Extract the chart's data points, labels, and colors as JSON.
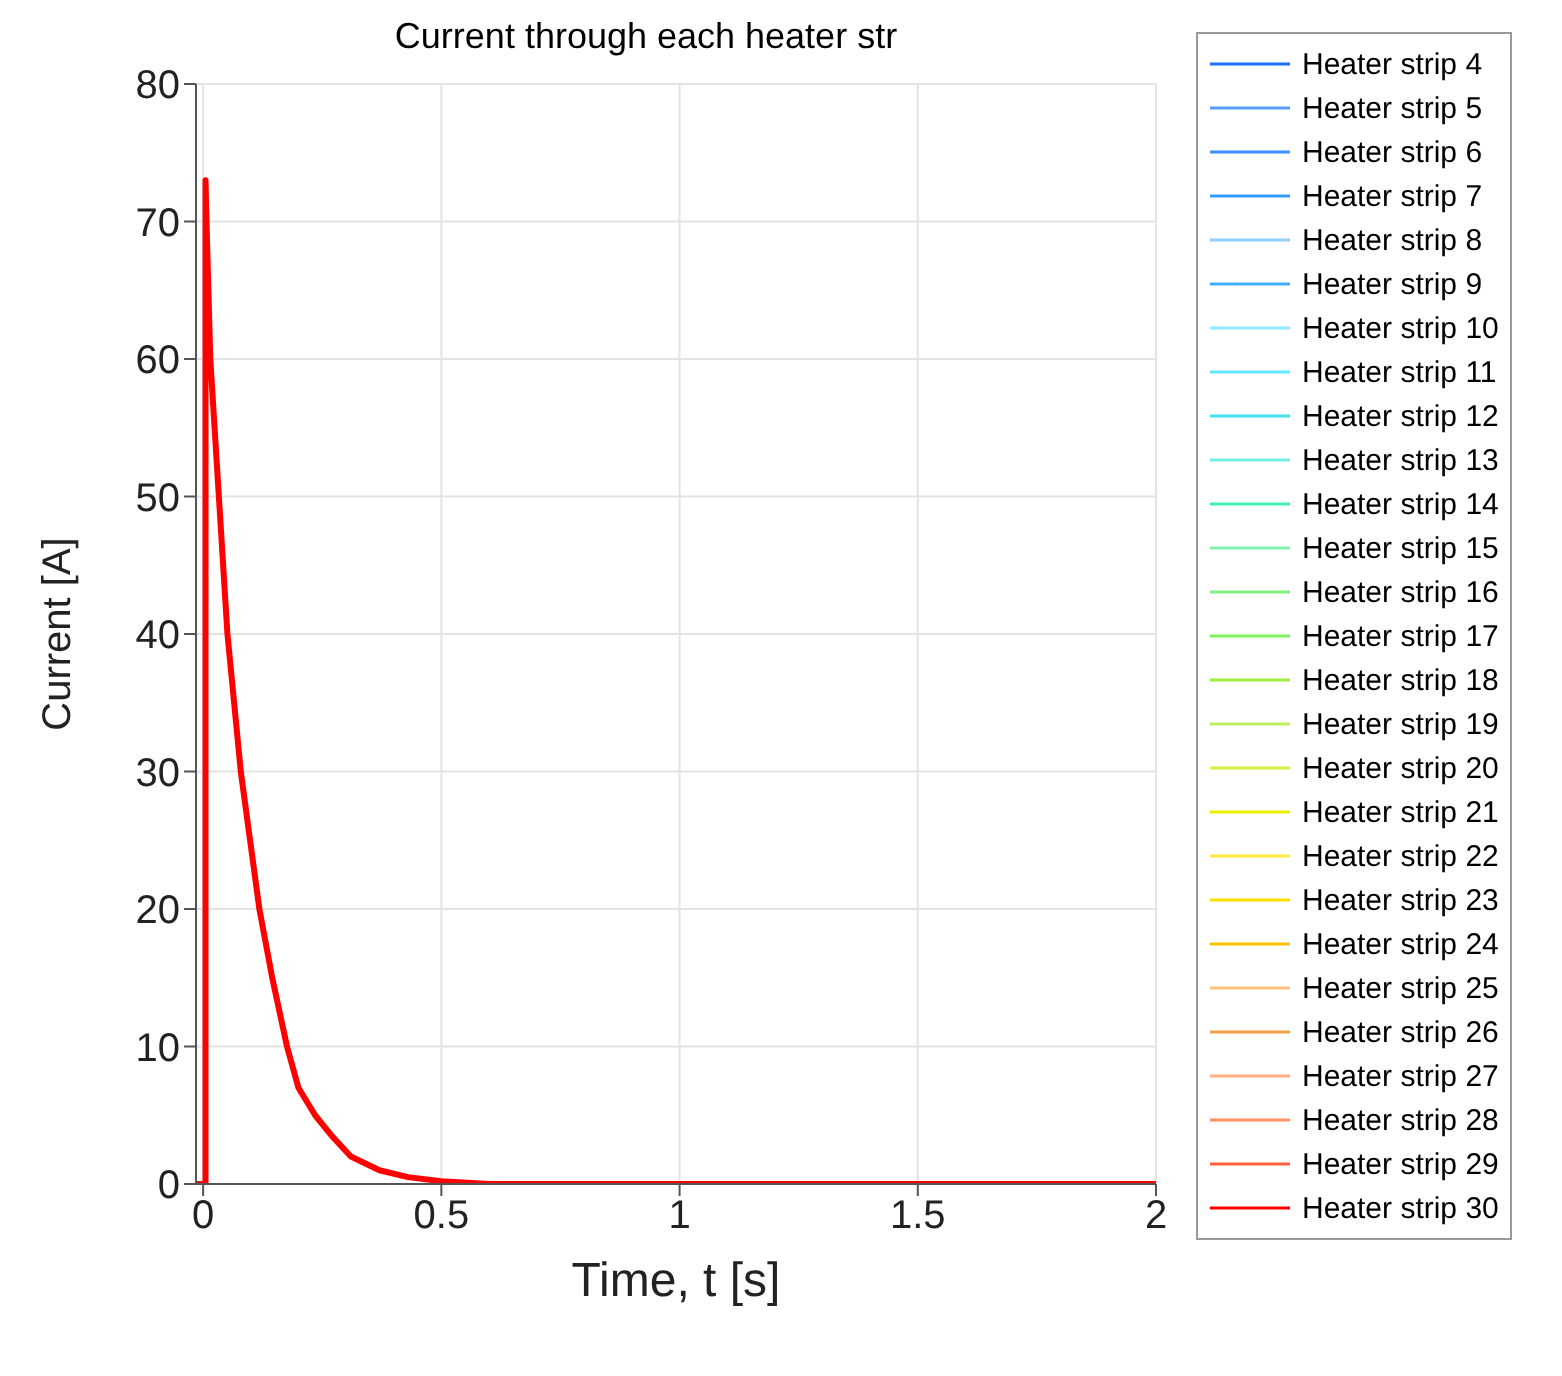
{
  "chart_data": {
    "type": "line",
    "title": "Current through each heater str",
    "xlabel": "Time, t [s]",
    "ylabel": "Current [A]",
    "x": [
      -0.015,
      0.005,
      0.005,
      0.007,
      0.015,
      0.033,
      0.051,
      0.079,
      0.118,
      0.145,
      0.176,
      0.2,
      0.235,
      0.27,
      0.31,
      0.37,
      0.43,
      0.5,
      0.6,
      1,
      2
    ],
    "xlim": [
      -0.015,
      2
    ],
    "xticks": [
      0,
      0.5,
      1,
      1.5,
      2
    ],
    "ylim": [
      0,
      80
    ],
    "yticks": [
      0,
      10,
      20,
      30,
      40,
      50,
      60,
      70,
      80
    ],
    "grid": true,
    "legend": "right",
    "line_style": "solid",
    "series": [
      {
        "name": "Heater strip 4",
        "color": "#1f6fff",
        "values": [
          null,
          null,
          null,
          null,
          null,
          null,
          null,
          null,
          null,
          null,
          null,
          null,
          null,
          null,
          null,
          null,
          null,
          null,
          null,
          null,
          null
        ]
      },
      {
        "name": "Heater strip 5",
        "color": "#5a9cff",
        "values": [
          null,
          null,
          null,
          null,
          null,
          null,
          null,
          null,
          null,
          null,
          null,
          null,
          null,
          null,
          null,
          null,
          null,
          null,
          null,
          null,
          null
        ]
      },
      {
        "name": "Heater strip 6",
        "color": "#3f8fff",
        "values": [
          null,
          null,
          null,
          null,
          null,
          null,
          null,
          null,
          null,
          null,
          null,
          null,
          null,
          null,
          null,
          null,
          null,
          null,
          null,
          null,
          null
        ]
      },
      {
        "name": "Heater strip 7",
        "color": "#2f9fff",
        "values": [
          null,
          null,
          null,
          null,
          null,
          null,
          null,
          null,
          null,
          null,
          null,
          null,
          null,
          null,
          null,
          null,
          null,
          null,
          null,
          null,
          null
        ]
      },
      {
        "name": "Heater strip 8",
        "color": "#8fd0ff",
        "values": [
          null,
          null,
          null,
          null,
          null,
          null,
          null,
          null,
          null,
          null,
          null,
          null,
          null,
          null,
          null,
          null,
          null,
          null,
          null,
          null,
          null
        ]
      },
      {
        "name": "Heater strip 9",
        "color": "#3fb0ff",
        "values": [
          null,
          null,
          null,
          null,
          null,
          null,
          null,
          null,
          null,
          null,
          null,
          null,
          null,
          null,
          null,
          null,
          null,
          null,
          null,
          null,
          null
        ]
      },
      {
        "name": "Heater strip 10",
        "color": "#8fe8ff",
        "values": [
          null,
          null,
          null,
          null,
          null,
          null,
          null,
          null,
          null,
          null,
          null,
          null,
          null,
          null,
          null,
          null,
          null,
          null,
          null,
          null,
          null
        ]
      },
      {
        "name": "Heater strip 11",
        "color": "#60e8ff",
        "values": [
          null,
          null,
          null,
          null,
          null,
          null,
          null,
          null,
          null,
          null,
          null,
          null,
          null,
          null,
          null,
          null,
          null,
          null,
          null,
          null,
          null
        ]
      },
      {
        "name": "Heater strip 12",
        "color": "#40e0f0",
        "values": [
          null,
          null,
          null,
          null,
          null,
          null,
          null,
          null,
          null,
          null,
          null,
          null,
          null,
          null,
          null,
          null,
          null,
          null,
          null,
          null,
          null
        ]
      },
      {
        "name": "Heater strip 13",
        "color": "#70f0e0",
        "values": [
          null,
          null,
          null,
          null,
          null,
          null,
          null,
          null,
          null,
          null,
          null,
          null,
          null,
          null,
          null,
          null,
          null,
          null,
          null,
          null,
          null
        ]
      },
      {
        "name": "Heater strip 14",
        "color": "#40f0b0",
        "values": [
          null,
          null,
          null,
          null,
          null,
          null,
          null,
          null,
          null,
          null,
          null,
          null,
          null,
          null,
          null,
          null,
          null,
          null,
          null,
          null,
          null
        ]
      },
      {
        "name": "Heater strip 15",
        "color": "#80f0b0",
        "values": [
          null,
          null,
          null,
          null,
          null,
          null,
          null,
          null,
          null,
          null,
          null,
          null,
          null,
          null,
          null,
          null,
          null,
          null,
          null,
          null,
          null
        ]
      },
      {
        "name": "Heater strip 16",
        "color": "#80f080",
        "values": [
          null,
          null,
          null,
          null,
          null,
          null,
          null,
          null,
          null,
          null,
          null,
          null,
          null,
          null,
          null,
          null,
          null,
          null,
          null,
          null,
          null
        ]
      },
      {
        "name": "Heater strip 17",
        "color": "#80f060",
        "values": [
          null,
          null,
          null,
          null,
          null,
          null,
          null,
          null,
          null,
          null,
          null,
          null,
          null,
          null,
          null,
          null,
          null,
          null,
          null,
          null,
          null
        ]
      },
      {
        "name": "Heater strip 18",
        "color": "#a0f040",
        "values": [
          null,
          null,
          null,
          null,
          null,
          null,
          null,
          null,
          null,
          null,
          null,
          null,
          null,
          null,
          null,
          null,
          null,
          null,
          null,
          null,
          null
        ]
      },
      {
        "name": "Heater strip 19",
        "color": "#c0f060",
        "values": [
          null,
          null,
          null,
          null,
          null,
          null,
          null,
          null,
          null,
          null,
          null,
          null,
          null,
          null,
          null,
          null,
          null,
          null,
          null,
          null,
          null
        ]
      },
      {
        "name": "Heater strip 20",
        "color": "#d0f040",
        "values": [
          null,
          null,
          null,
          null,
          null,
          null,
          null,
          null,
          null,
          null,
          null,
          null,
          null,
          null,
          null,
          null,
          null,
          null,
          null,
          null,
          null
        ]
      },
      {
        "name": "Heater strip 21",
        "color": "#e8f000",
        "values": [
          null,
          null,
          null,
          null,
          null,
          null,
          null,
          null,
          null,
          null,
          null,
          null,
          null,
          null,
          null,
          null,
          null,
          null,
          null,
          null,
          null
        ]
      },
      {
        "name": "Heater strip 22",
        "color": "#ffe840",
        "values": [
          null,
          null,
          null,
          null,
          null,
          null,
          null,
          null,
          null,
          null,
          null,
          null,
          null,
          null,
          null,
          null,
          null,
          null,
          null,
          null,
          null
        ]
      },
      {
        "name": "Heater strip 23",
        "color": "#ffe000",
        "values": [
          null,
          null,
          null,
          null,
          null,
          null,
          null,
          null,
          null,
          null,
          null,
          null,
          null,
          null,
          null,
          null,
          null,
          null,
          null,
          null,
          null
        ]
      },
      {
        "name": "Heater strip 24",
        "color": "#ffc000",
        "values": [
          null,
          null,
          null,
          null,
          null,
          null,
          null,
          null,
          null,
          null,
          null,
          null,
          null,
          null,
          null,
          null,
          null,
          null,
          null,
          null,
          null
        ]
      },
      {
        "name": "Heater strip 25",
        "color": "#ffc080",
        "values": [
          null,
          null,
          null,
          null,
          null,
          null,
          null,
          null,
          null,
          null,
          null,
          null,
          null,
          null,
          null,
          null,
          null,
          null,
          null,
          null,
          null
        ]
      },
      {
        "name": "Heater strip 26",
        "color": "#f0a040",
        "values": [
          null,
          null,
          null,
          null,
          null,
          null,
          null,
          null,
          null,
          null,
          null,
          null,
          null,
          null,
          null,
          null,
          null,
          null,
          null,
          null,
          null
        ]
      },
      {
        "name": "Heater strip 27",
        "color": "#ffb080",
        "values": [
          null,
          null,
          null,
          null,
          null,
          null,
          null,
          null,
          null,
          null,
          null,
          null,
          null,
          null,
          null,
          null,
          null,
          null,
          null,
          null,
          null
        ]
      },
      {
        "name": "Heater strip 28",
        "color": "#ff9060",
        "values": [
          null,
          null,
          null,
          null,
          null,
          null,
          null,
          null,
          null,
          null,
          null,
          null,
          null,
          null,
          null,
          null,
          null,
          null,
          null,
          null,
          null
        ]
      },
      {
        "name": "Heater strip 29",
        "color": "#ff6040",
        "values": [
          null,
          null,
          null,
          null,
          null,
          null,
          null,
          null,
          null,
          null,
          null,
          null,
          null,
          null,
          null,
          null,
          null,
          null,
          null,
          null,
          null
        ]
      },
      {
        "name": "Heater strip 30",
        "color": "#ff0000",
        "values": [
          0,
          0,
          73,
          70,
          60,
          50,
          40,
          30,
          20,
          15,
          10,
          7,
          5,
          3.5,
          2,
          1,
          0.5,
          0.2,
          0,
          0,
          0
        ]
      }
    ]
  }
}
